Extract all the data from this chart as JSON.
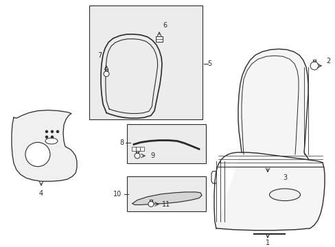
{
  "bg_color": "#ffffff",
  "line_color": "#2a2a2a",
  "box_fill": "#ebebeb",
  "fig_w": 4.89,
  "fig_h": 3.6,
  "dpi": 100
}
